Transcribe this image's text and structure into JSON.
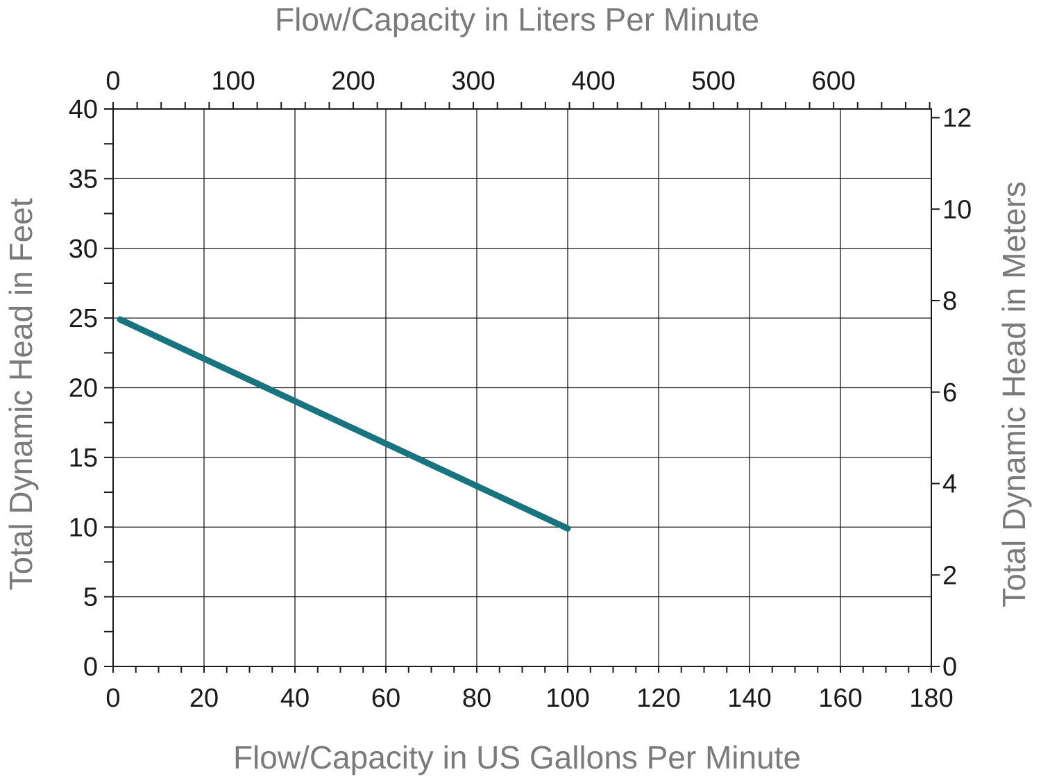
{
  "chart_data": {
    "type": "line",
    "title": "",
    "xlabel": "Flow/Capacity in US Gallons Per Minute",
    "x2label": "Flow/Capacity in Liters Per Minute",
    "ylabel": "Total Dynamic Head in Feet",
    "y2label": "Total Dynamic Head in Meters",
    "xlim": [
      0,
      180
    ],
    "ylim": [
      0,
      40
    ],
    "x2lim": [
      0,
      681.4
    ],
    "y2lim": [
      0,
      12.19
    ],
    "xticks": [
      0,
      20,
      40,
      60,
      80,
      100,
      120,
      140,
      160,
      180
    ],
    "yticks": [
      0,
      5,
      10,
      15,
      20,
      25,
      30,
      35,
      40
    ],
    "x2ticks": [
      0,
      100,
      200,
      300,
      400,
      500,
      600
    ],
    "y2ticks": [
      0,
      2,
      4,
      6,
      8,
      10,
      12
    ],
    "grid": true,
    "series": [
      {
        "color": "#1a7480",
        "x": [
          1.5,
          100
        ],
        "y": [
          24.9,
          9.9
        ]
      }
    ]
  }
}
